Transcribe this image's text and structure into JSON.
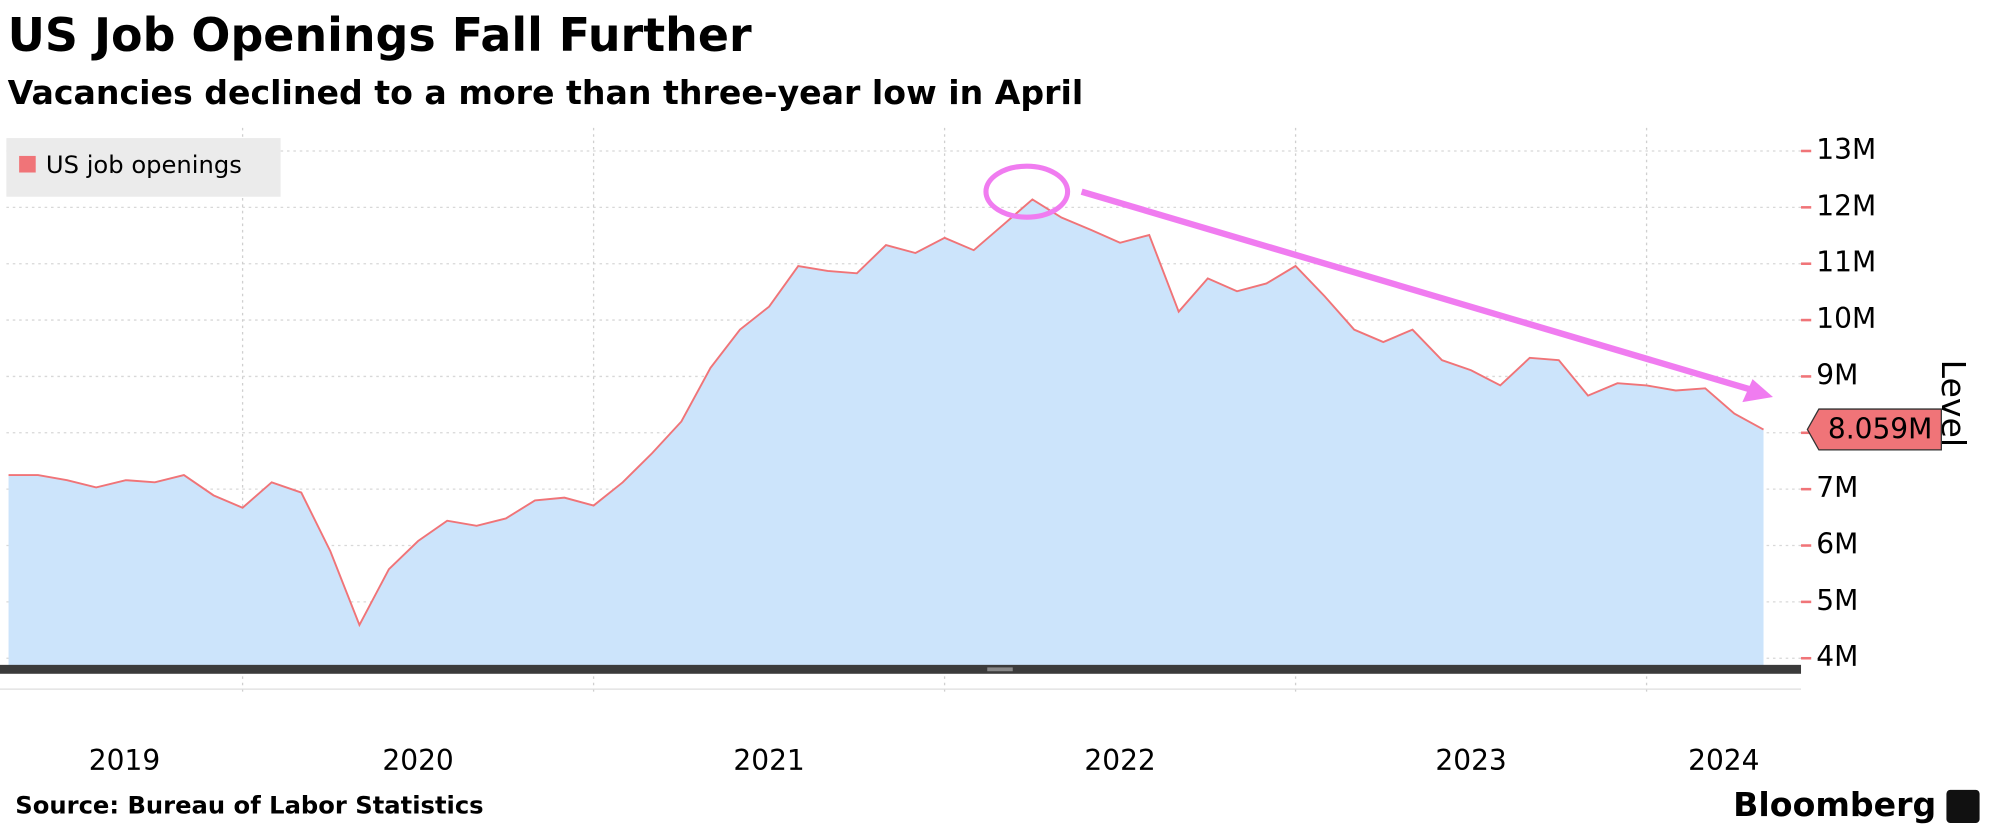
{
  "chart_data": {
    "type": "area",
    "title": "US Job Openings Fall Further",
    "subtitle": "Vacancies declined to a more than three-year low in April",
    "y_axis_label": "Level",
    "source": "Source: Bureau of Labor Statistics",
    "brand": "Bloomberg",
    "legend_position": "top-left",
    "grid": true,
    "x": [
      2019.333,
      2019.417,
      2019.5,
      2019.583,
      2019.667,
      2019.75,
      2019.833,
      2019.917,
      2020,
      2020.083,
      2020.167,
      2020.25,
      2020.333,
      2020.417,
      2020.5,
      2020.583,
      2020.667,
      2020.75,
      2020.833,
      2020.917,
      2021,
      2021.083,
      2021.167,
      2021.25,
      2021.333,
      2021.417,
      2021.5,
      2021.583,
      2021.667,
      2021.75,
      2021.833,
      2021.917,
      2022,
      2022.083,
      2022.167,
      2022.25,
      2022.333,
      2022.417,
      2022.5,
      2022.583,
      2022.667,
      2022.75,
      2022.833,
      2022.917,
      2023,
      2023.083,
      2023.167,
      2023.25,
      2023.333,
      2023.417,
      2023.5,
      2023.583,
      2023.667,
      2023.75,
      2023.833,
      2023.917,
      2024,
      2024.083,
      2024.167,
      2024.25,
      2024.333
    ],
    "xlim": [
      2019.327,
      2024.44
    ],
    "xticks": [
      2020,
      2021,
      2022,
      2023,
      2024
    ],
    "year_labels": [
      "2019",
      "2020",
      "2021",
      "2022",
      "2023",
      "2024"
    ],
    "ylim": [
      3.86,
      13.41
    ],
    "yticks": [
      {
        "value": 4,
        "label": "4M"
      },
      {
        "value": 5,
        "label": "5M"
      },
      {
        "value": 6,
        "label": "6M"
      },
      {
        "value": 7,
        "label": "7M"
      },
      {
        "value": 8,
        "label": "8M"
      },
      {
        "value": 9,
        "label": "9M"
      },
      {
        "value": 10,
        "label": "10M"
      },
      {
        "value": 11,
        "label": "11M"
      },
      {
        "value": 12,
        "label": "12M"
      },
      {
        "value": 13,
        "label": "13M"
      }
    ],
    "series": [
      {
        "name": "US job openings",
        "color": "#f07478",
        "fill": "#cce4fb",
        "values": [
          7.25,
          7.25,
          7.16,
          7.03,
          7.16,
          7.12,
          7.25,
          6.89,
          6.67,
          7.12,
          6.94,
          5.9,
          4.59,
          5.58,
          6.08,
          6.44,
          6.35,
          6.48,
          6.8,
          6.85,
          6.71,
          7.12,
          7.64,
          8.2,
          9.15,
          9.83,
          10.24,
          10.96,
          10.87,
          10.83,
          11.33,
          11.19,
          11.46,
          11.24,
          11.69,
          12.14,
          11.82,
          11.6,
          11.37,
          11.51,
          10.15,
          10.74,
          10.51,
          10.65,
          10.96,
          10.42,
          9.83,
          9.61,
          9.83,
          9.29,
          9.11,
          8.84,
          9.33,
          9.29,
          8.66,
          8.88,
          8.84,
          8.75,
          8.79,
          8.34,
          8.059
        ],
        "value_labels": [
          null,
          null,
          null,
          null,
          null,
          null,
          null,
          null,
          null,
          null,
          null,
          null,
          null,
          null,
          null,
          null,
          null,
          null,
          null,
          null,
          null,
          null,
          null,
          null,
          null,
          null,
          null,
          null,
          null,
          null,
          null,
          null,
          null,
          null,
          null,
          null,
          null,
          null,
          null,
          null,
          null,
          null,
          null,
          null,
          null,
          null,
          null,
          null,
          null,
          null,
          null,
          null,
          null,
          null,
          null,
          null,
          null,
          null,
          null,
          null,
          "8.059M"
        ]
      }
    ]
  }
}
